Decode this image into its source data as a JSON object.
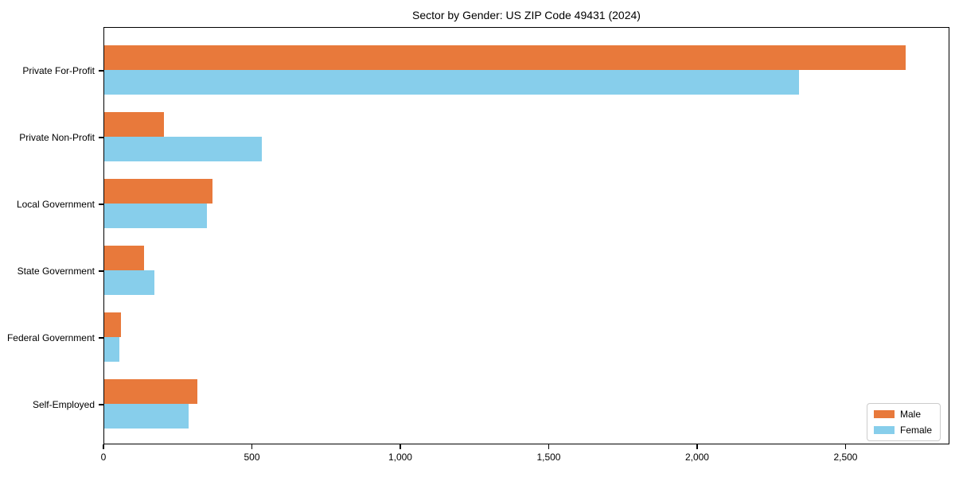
{
  "chart_data": {
    "type": "bar",
    "orientation": "horizontal",
    "title": "Sector by Gender: US ZIP Code 49431 (2024)",
    "categories": [
      "Private For-Profit",
      "Private Non-Profit",
      "Local Government",
      "State Government",
      "Federal Government",
      "Self-Employed"
    ],
    "series": [
      {
        "name": "Male",
        "color": "#E8793B",
        "values": [
          2700,
          200,
          365,
          135,
          55,
          315
        ]
      },
      {
        "name": "Female",
        "color": "#87CEEB",
        "values": [
          2340,
          530,
          345,
          170,
          50,
          285
        ]
      }
    ],
    "xlabel": "",
    "ylabel": "",
    "xlim": [
      0,
      2850
    ],
    "xticks": [
      0,
      500,
      1000,
      1500,
      2000,
      2500
    ],
    "xtick_labels": [
      "0",
      "500",
      "1,000",
      "1,500",
      "2,000",
      "2,500"
    ],
    "grid": false,
    "legend_position": "lower right",
    "background_color": "#ffffff",
    "axis_color": "#000000"
  }
}
